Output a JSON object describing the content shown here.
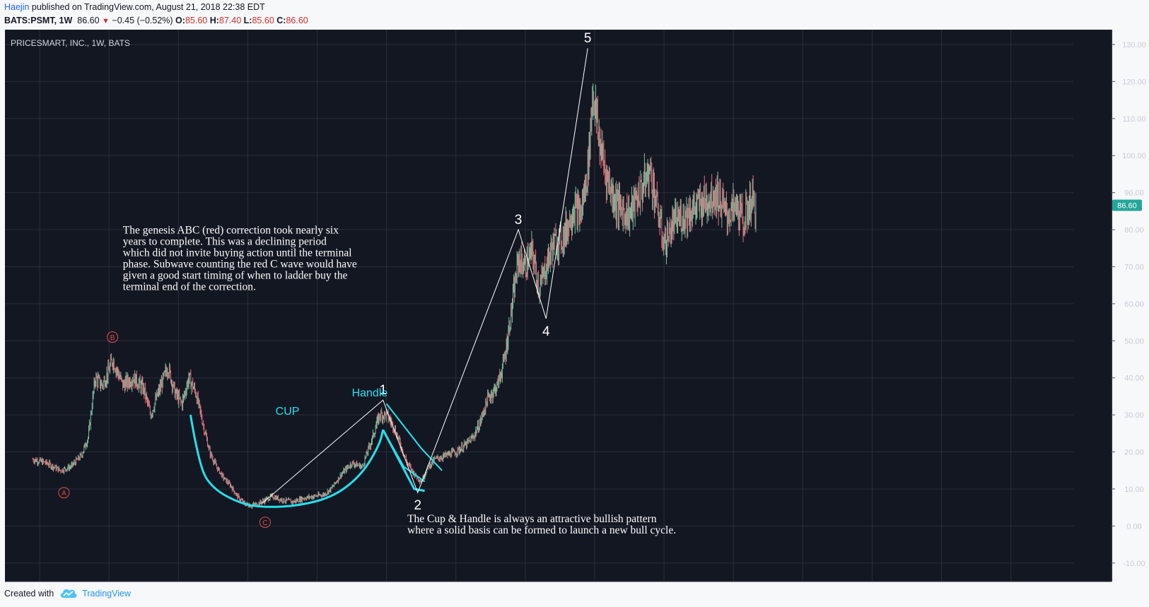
{
  "header": {
    "author": "Haejin",
    "published": " published on TradingView.com, August 21, 2018 22:38 EDT",
    "symbol": "BATS:PSMT, 1W",
    "last": "86.60",
    "change": "−0.45 (−0.52%)",
    "o_label": "O:",
    "o": "85.60",
    "h_label": "H:",
    "h": "87.40",
    "l_label": "L:",
    "l": "85.60",
    "c_label": "C:",
    "c": "86.60"
  },
  "footer": {
    "created_with": "Created with",
    "brand": "TradingView"
  },
  "colors": {
    "bg": "#131722",
    "grid": "#2a2e39",
    "up": "#7dbfa0",
    "down": "#e0727c",
    "cup": "#26e0ee",
    "wave": "#ffffff",
    "abc": "#e0504a",
    "price_tag": "#26a69a"
  },
  "chart_data": {
    "type": "candlestick",
    "title": "PRICESMART, INC., 1W, BATS",
    "xlim": [
      1997,
      2027.8
    ],
    "ylim": [
      -15,
      134
    ],
    "x_ticks": [
      "1998",
      "2000",
      "2002",
      "2004",
      "2006",
      "2008",
      "2010",
      "2012",
      "2014",
      "2016",
      "2018",
      "2020",
      "2022",
      "2024",
      "2026"
    ],
    "y_ticks": [
      "130.00",
      "120.00",
      "110.00",
      "100.00",
      "90.00",
      "80.00",
      "70.00",
      "60.00",
      "50.00",
      "40.00",
      "30.00",
      "20.00",
      "10.00",
      "0.00",
      "-10.00"
    ],
    "last_price": "86.60",
    "price_path": [
      [
        1997.8,
        18
      ],
      [
        1998.2,
        17
      ],
      [
        1998.6,
        15
      ],
      [
        1998.9,
        16
      ],
      [
        1999.2,
        19
      ],
      [
        1999.4,
        24
      ],
      [
        1999.6,
        40
      ],
      [
        1999.8,
        38
      ],
      [
        2000.0,
        42
      ],
      [
        2000.1,
        45
      ],
      [
        2000.4,
        38
      ],
      [
        2000.7,
        40
      ],
      [
        2001.0,
        37
      ],
      [
        2001.2,
        30
      ],
      [
        2001.5,
        38
      ],
      [
        2001.7,
        43
      ],
      [
        2001.9,
        36
      ],
      [
        2002.1,
        33
      ],
      [
        2002.3,
        40
      ],
      [
        2002.5,
        36
      ],
      [
        2002.7,
        28
      ],
      [
        2002.9,
        20
      ],
      [
        2003.1,
        16
      ],
      [
        2003.3,
        13
      ],
      [
        2003.5,
        11
      ],
      [
        2003.7,
        8
      ],
      [
        2003.9,
        6
      ],
      [
        2004.1,
        5.5
      ],
      [
        2004.3,
        6
      ],
      [
        2004.5,
        7
      ],
      [
        2004.7,
        8
      ],
      [
        2005.0,
        7
      ],
      [
        2005.3,
        6.5
      ],
      [
        2005.6,
        7.5
      ],
      [
        2005.9,
        8
      ],
      [
        2006.2,
        8.5
      ],
      [
        2006.4,
        10
      ],
      [
        2006.7,
        14
      ],
      [
        2007.0,
        17
      ],
      [
        2007.3,
        16
      ],
      [
        2007.6,
        24
      ],
      [
        2007.8,
        30
      ],
      [
        2008.0,
        30
      ],
      [
        2008.2,
        27
      ],
      [
        2008.4,
        22
      ],
      [
        2008.6,
        17
      ],
      [
        2008.8,
        14
      ],
      [
        2009.0,
        12
      ],
      [
        2009.2,
        16
      ],
      [
        2009.4,
        18
      ],
      [
        2009.7,
        19
      ],
      [
        2010.0,
        20
      ],
      [
        2010.3,
        22
      ],
      [
        2010.5,
        24
      ],
      [
        2010.7,
        28
      ],
      [
        2010.9,
        34
      ],
      [
        2011.2,
        38
      ],
      [
        2011.4,
        45
      ],
      [
        2011.6,
        58
      ],
      [
        2011.8,
        72
      ],
      [
        2012.0,
        70
      ],
      [
        2012.2,
        74
      ],
      [
        2012.4,
        64
      ],
      [
        2012.6,
        70
      ],
      [
        2012.8,
        76
      ],
      [
        2013.1,
        78
      ],
      [
        2013.4,
        86
      ],
      [
        2013.6,
        84
      ],
      [
        2013.8,
        96
      ],
      [
        2013.95,
        118
      ],
      [
        2014.1,
        106
      ],
      [
        2014.3,
        96
      ],
      [
        2014.5,
        90
      ],
      [
        2014.7,
        86
      ],
      [
        2015.0,
        84
      ],
      [
        2015.3,
        90
      ],
      [
        2015.6,
        96
      ],
      [
        2015.8,
        86
      ],
      [
        2016.0,
        76
      ],
      [
        2016.3,
        82
      ],
      [
        2016.6,
        84
      ],
      [
        2016.9,
        86
      ],
      [
        2017.2,
        88
      ],
      [
        2017.5,
        90
      ],
      [
        2017.8,
        84
      ],
      [
        2018.1,
        86
      ],
      [
        2018.3,
        82
      ],
      [
        2018.5,
        88
      ],
      [
        2018.65,
        86.6
      ]
    ],
    "cup": [
      [
        2002.35,
        30
      ],
      [
        2002.6,
        16
      ],
      [
        2003.0,
        10
      ],
      [
        2003.8,
        6
      ],
      [
        2004.5,
        5
      ],
      [
        2005.5,
        5.5
      ],
      [
        2006.5,
        8
      ],
      [
        2007.3,
        14
      ],
      [
        2007.8,
        22
      ],
      [
        2007.9,
        26
      ]
    ],
    "handle": [
      [
        2007.9,
        26
      ],
      [
        2008.8,
        10
      ],
      [
        2009.1,
        9.5
      ]
    ],
    "handle_channel_upper": [
      [
        2008.0,
        33
      ],
      [
        2009.0,
        21
      ],
      [
        2009.6,
        15
      ]
    ],
    "handle_channel_lower": [
      [
        2007.9,
        26
      ],
      [
        2008.5,
        16
      ],
      [
        2009.1,
        12
      ]
    ],
    "waves": [
      [
        2004.4,
        6
      ],
      [
        2007.9,
        34
      ],
      [
        2008.9,
        9
      ],
      [
        2011.8,
        80
      ],
      [
        2012.6,
        56
      ],
      [
        2013.8,
        129
      ]
    ],
    "wave_labels": [
      {
        "text": "1",
        "x": 2007.9,
        "y": 34
      },
      {
        "text": "2",
        "x": 2008.9,
        "y": 9
      },
      {
        "text": "3",
        "x": 2011.8,
        "y": 80
      },
      {
        "text": "4",
        "x": 2012.6,
        "y": 56
      },
      {
        "text": "5",
        "x": 2013.8,
        "y": 129
      }
    ],
    "abc_labels": [
      {
        "text": "A",
        "x": 1998.7,
        "y": 9
      },
      {
        "text": "B",
        "x": 2000.1,
        "y": 51
      },
      {
        "text": "C",
        "x": 2004.5,
        "y": 1
      }
    ],
    "labels": [
      {
        "text": "CUP",
        "x": 2004.8,
        "y": 30
      },
      {
        "text": "Handle",
        "x": 2007.0,
        "y": 35
      }
    ],
    "annotations": [
      {
        "lines": [
          "The genesis ABC (red) correction took nearly six",
          "years to complete. This was a  declining period",
          "which did not invite buying action until the terminal",
          "phase. Subwave counting the red C wave would have",
          "given a good start timing of when to ladder buy the",
          "terminal end of the correction."
        ],
        "x": 2000.4,
        "y": 79
      },
      {
        "lines": [
          "The Cup & Handle is always an attractive bullish pattern",
          "where a solid basis can be formed to launch a new bull cycle."
        ],
        "x": 2008.6,
        "y": 1
      }
    ]
  }
}
